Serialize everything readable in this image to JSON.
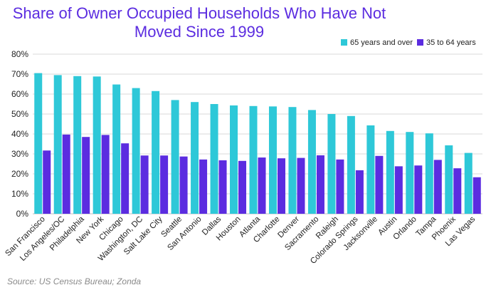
{
  "title_line1": "Share of Owner Occupied Households Who Have Not",
  "title_line2": "Moved Since 1999",
  "source": "Source: US Census Bureau; Zonda",
  "colors": {
    "series1": "#2ec8d8",
    "series2": "#5b2ce0",
    "title": "#5b2ce0",
    "grid": "#d9d9d9",
    "axis": "#bfbfbf",
    "text": "#222222"
  },
  "chart_data": {
    "type": "bar",
    "categories": [
      "San Francisco",
      "Los Angeles/OC",
      "Philadelphia",
      "New York",
      "Chicago",
      "Washington, DC",
      "Salt Lake City",
      "Seattle",
      "San Antonio",
      "Dallas",
      "Houston",
      "Atlanta",
      "Charlotte",
      "Denver",
      "Sacramento",
      "Raleigh",
      "Colorado Springs",
      "Jacksonville",
      "Austin",
      "Orlando",
      "Tampa",
      "Phoenix",
      "Las Vegas"
    ],
    "series": [
      {
        "name": "65 years and over",
        "values": [
          70.5,
          69.5,
          69,
          68.8,
          64.8,
          63,
          61.5,
          57,
          56,
          55,
          54.3,
          54,
          53.8,
          53.5,
          52,
          50,
          49,
          44.3,
          41.5,
          41,
          40.3,
          34.3,
          30.5
        ]
      },
      {
        "name": "35 to 64 years",
        "values": [
          31.7,
          39.7,
          38.5,
          39.5,
          35.3,
          29.2,
          29.2,
          28.7,
          27.2,
          26.8,
          26.5,
          28.2,
          27.8,
          28,
          29.3,
          27.2,
          21.8,
          29,
          23.8,
          24.2,
          27,
          22.8,
          18.3
        ]
      }
    ],
    "ylim": [
      0,
      80
    ],
    "yticks": [
      "0%",
      "10%",
      "20%",
      "30%",
      "40%",
      "50%",
      "60%",
      "70%",
      "80%"
    ],
    "ytick_values": [
      0,
      10,
      20,
      30,
      40,
      50,
      60,
      70,
      80
    ],
    "legend_position": "top-right",
    "grid": true
  }
}
